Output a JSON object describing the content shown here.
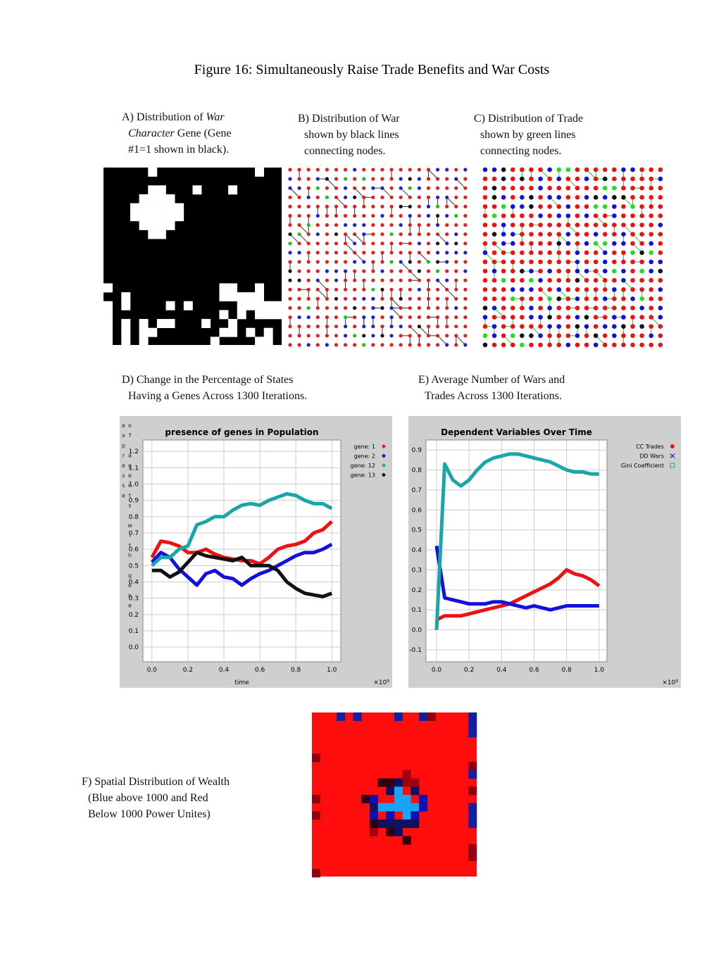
{
  "title": "Figure 16: Simultaneously Raise Trade Benefits and War Costs",
  "panels": {
    "a": {
      "caption": [
        "A) Distribution of ",
        "War",
        "Character",
        " Gene (Gene",
        "#1=1 shown in black)."
      ]
    },
    "b": {
      "caption": [
        "B) Distribution of War",
        "shown by black lines",
        "connecting nodes."
      ]
    },
    "c": {
      "caption": [
        "C) Distribution of Trade",
        "shown by green lines",
        "connecting nodes."
      ]
    },
    "d": {
      "caption": [
        "D) Change in the Percentage of States",
        "Having  a Genes Across 1300 Iterations."
      ]
    },
    "e": {
      "caption": [
        "E) Average Number of Wars and",
        "Trades Across 1300 Iterations."
      ]
    },
    "f": {
      "caption": [
        "F) Spatial Distribution of Wealth",
        "(Blue above 1000 and Red",
        "Below 1000 Power Unites)"
      ]
    }
  },
  "chart_data": [
    {
      "type": "line",
      "title": "presence of genes in Population",
      "x_label": "time",
      "y_label": "of agents with gene expresse",
      "x_scale_label": "×10³",
      "x": [
        0,
        0.05,
        0.1,
        0.15,
        0.2,
        0.25,
        0.3,
        0.35,
        0.4,
        0.45,
        0.5,
        0.55,
        0.6,
        0.65,
        0.7,
        0.75,
        0.8,
        0.85,
        0.9,
        0.95,
        1.0
      ],
      "series": [
        {
          "name": "gene: 1",
          "color": "#ee1111",
          "marker": "diamond",
          "values": [
            0.55,
            0.65,
            0.64,
            0.62,
            0.58,
            0.58,
            0.6,
            0.57,
            0.55,
            0.54,
            0.53,
            0.53,
            0.51,
            0.55,
            0.6,
            0.62,
            0.63,
            0.65,
            0.7,
            0.72,
            0.77
          ]
        },
        {
          "name": "gene: 2",
          "color": "#1111dd",
          "marker": "diamond",
          "values": [
            0.52,
            0.58,
            0.55,
            0.48,
            0.43,
            0.38,
            0.45,
            0.47,
            0.43,
            0.42,
            0.38,
            0.42,
            0.45,
            0.47,
            0.5,
            0.53,
            0.56,
            0.58,
            0.58,
            0.6,
            0.63
          ]
        },
        {
          "name": "gene: 12",
          "color": "#1aa6a6",
          "marker": "diamond",
          "values": [
            0.5,
            0.55,
            0.55,
            0.6,
            0.62,
            0.75,
            0.77,
            0.8,
            0.8,
            0.84,
            0.87,
            0.88,
            0.87,
            0.9,
            0.92,
            0.94,
            0.93,
            0.9,
            0.88,
            0.88,
            0.85
          ]
        },
        {
          "name": "gene: 13",
          "color": "#111111",
          "marker": "diamond",
          "values": [
            0.47,
            0.47,
            0.43,
            0.46,
            0.52,
            0.58,
            0.56,
            0.55,
            0.54,
            0.53,
            0.55,
            0.5,
            0.5,
            0.5,
            0.47,
            0.4,
            0.36,
            0.33,
            0.32,
            0.31,
            0.33
          ]
        }
      ],
      "xlim": [
        -0.05,
        1.05
      ],
      "ylim": [
        -0.09,
        1.27
      ],
      "xticks": [
        {
          "value": 0,
          "label": "0.0"
        },
        0.2,
        0.4,
        0.6,
        0.8,
        {
          "value": 1,
          "label": "1.0"
        }
      ],
      "yticks": [
        {
          "value": 0,
          "label": "0.0"
        },
        0.1,
        0.2,
        0.3,
        0.4,
        0.5,
        0.6,
        0.7,
        0.8,
        0.9,
        {
          "value": 1,
          "label": "1.0"
        },
        1.1,
        1.2
      ],
      "grid": true
    },
    {
      "type": "line",
      "title": "Dependent Variables Over Time",
      "x_scale_label": "×10³",
      "x": [
        0,
        0.05,
        0.1,
        0.15,
        0.2,
        0.25,
        0.3,
        0.35,
        0.4,
        0.45,
        0.5,
        0.55,
        0.6,
        0.65,
        0.7,
        0.75,
        0.8,
        0.85,
        0.9,
        0.95,
        1.0
      ],
      "series": [
        {
          "name": "CC Trades",
          "color": "#ee1111",
          "marker": "circle",
          "values": [
            0.05,
            0.07,
            0.07,
            0.07,
            0.08,
            0.09,
            0.1,
            0.11,
            0.12,
            0.13,
            0.15,
            0.17,
            0.19,
            0.21,
            0.23,
            0.26,
            0.3,
            0.28,
            0.27,
            0.25,
            0.22
          ]
        },
        {
          "name": "DD Wars",
          "color": "#1111dd",
          "marker": "cross",
          "values": [
            0.42,
            0.16,
            0.15,
            0.14,
            0.13,
            0.13,
            0.13,
            0.14,
            0.14,
            0.13,
            0.12,
            0.11,
            0.12,
            0.11,
            0.1,
            0.11,
            0.12,
            0.12,
            0.12,
            0.12,
            0.12
          ]
        },
        {
          "name": "Gini Coefficient",
          "color": "#1aa6a6",
          "marker": "square",
          "values": [
            0.0,
            0.83,
            0.75,
            0.72,
            0.75,
            0.8,
            0.84,
            0.86,
            0.87,
            0.88,
            0.88,
            0.87,
            0.86,
            0.85,
            0.84,
            0.82,
            0.8,
            0.79,
            0.79,
            0.78,
            0.78
          ]
        }
      ],
      "xlim": [
        -0.065,
        1.048
      ],
      "ylim": [
        -0.16,
        0.95
      ],
      "xticks": [
        {
          "value": 0,
          "label": "0.0"
        },
        0.2,
        0.4,
        0.6,
        0.8,
        {
          "value": 1,
          "label": "1.0"
        }
      ],
      "yticks": [
        -0.1,
        {
          "value": 0,
          "label": "0.0"
        },
        0.1,
        0.2,
        0.3,
        0.4,
        0.5,
        0.6,
        0.7,
        0.8,
        0.9
      ],
      "grid": true
    }
  ]
}
